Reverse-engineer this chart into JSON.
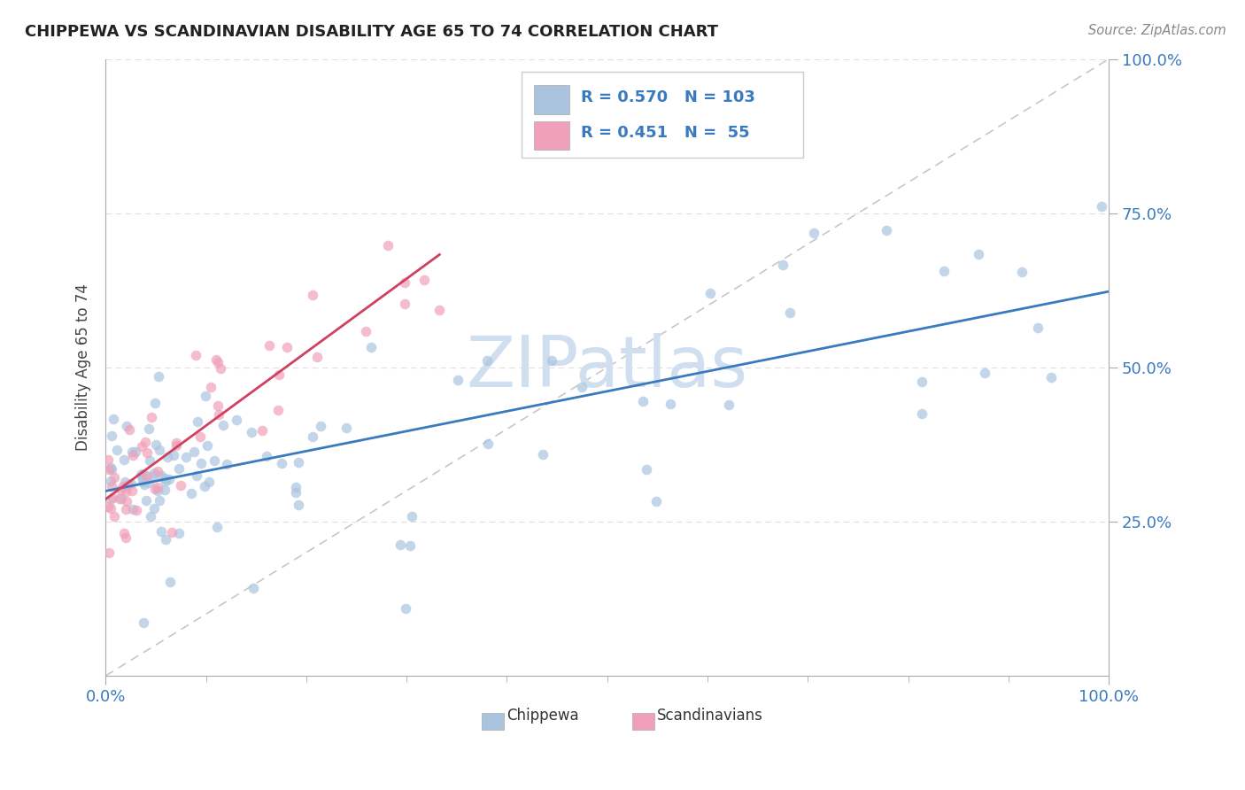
{
  "title": "CHIPPEWA VS SCANDINAVIAN DISABILITY AGE 65 TO 74 CORRELATION CHART",
  "source": "Source: ZipAtlas.com",
  "ylabel": "Disability Age 65 to 74",
  "chippewa_R": 0.57,
  "chippewa_N": 103,
  "scandinavian_R": 0.451,
  "scandinavian_N": 55,
  "chippewa_color": "#aac4e0",
  "chippewa_line_color": "#3a7abf",
  "scandinavian_color": "#f0a0b8",
  "scandinavian_line_color": "#d04060",
  "diagonal_color": "#c8c8c8",
  "background_color": "#ffffff",
  "grid_color": "#e0e0e0",
  "watermark_color": "#d0dff0",
  "title_color": "#222222",
  "source_color": "#888888",
  "axis_label_color": "#3a7abf",
  "ylabel_color": "#444444",
  "xlim": [
    0,
    100
  ],
  "ylim": [
    0,
    100
  ],
  "ytick_positions": [
    25,
    50,
    75,
    100
  ],
  "ytick_labels": [
    "25.0%",
    "50.0%",
    "75.0%",
    "100.0%"
  ],
  "xtick_left_label": "0.0%",
  "xtick_right_label": "100.0%",
  "legend_chip_label": "R = 0.570   N = 103",
  "legend_scan_label": "R = 0.451   N =  55",
  "bottom_legend_chip": "Chippewa",
  "bottom_legend_scan": "Scandinavians"
}
